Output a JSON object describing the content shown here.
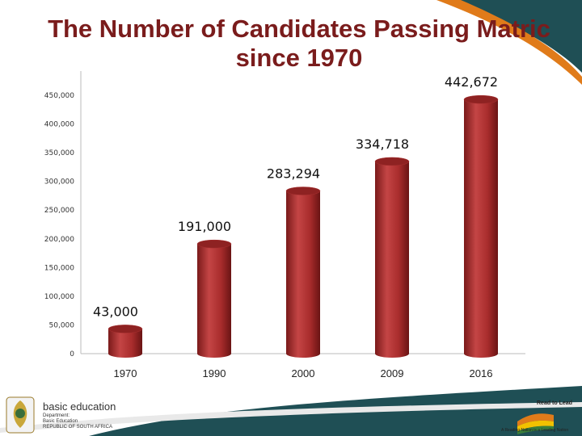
{
  "title_line1": "The Number of Candidates Passing Matric",
  "title_line2": "since 1970",
  "colors": {
    "bar": "#b03030",
    "bar_dark": "#6e1414",
    "bar_light": "#d46060",
    "title": "#7a1c1c",
    "teal": "#1f4f55",
    "orange": "#e07b1a",
    "yellow": "#f2c100"
  },
  "chart_data": {
    "type": "bar",
    "categories": [
      "1970",
      "1990",
      "2000",
      "2009",
      "2016"
    ],
    "values": [
      43000,
      191000,
      283294,
      334718,
      442672
    ],
    "data_labels": [
      "43,000",
      "191,000",
      "283,294",
      "334,718",
      "442,672"
    ],
    "ylim": [
      0,
      450000
    ],
    "yticks": [
      0,
      50000,
      100000,
      150000,
      200000,
      250000,
      300000,
      350000,
      400000,
      450000
    ],
    "ytick_labels": [
      "0",
      "50,000",
      "100,000",
      "150,000",
      "200,000",
      "250,000",
      "300,000",
      "350,000",
      "400,000",
      "450,000"
    ],
    "grid": false,
    "style": "3d-cylinder"
  },
  "footer": {
    "dept_name": "basic education",
    "dept_sub": [
      "Department:",
      "Basic Education",
      "REPUBLIC OF SOUTH AFRICA"
    ],
    "tagline_title": "Read to Lead",
    "tagline_sub": "A Reading Nation is a Leading Nation",
    "coat_of_arms_icon": "coat-of-arms-icon"
  }
}
